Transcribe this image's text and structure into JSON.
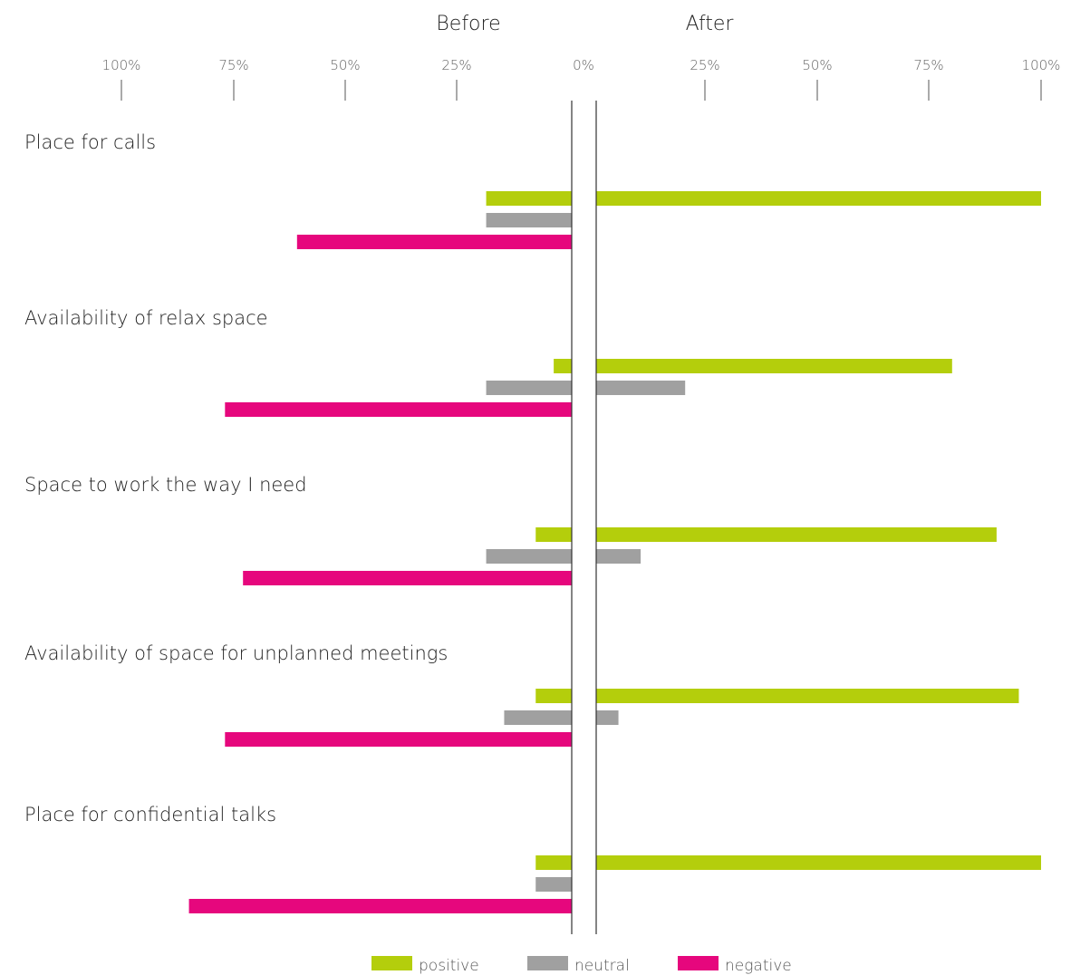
{
  "colors": {
    "positive": "#b4ce0c",
    "neutral": "#a0a0a0",
    "negative": "#e6077d"
  },
  "chart_data": {
    "type": "bar",
    "orientation": "horizontal-diverging",
    "panels": [
      "Before",
      "After"
    ],
    "tick_labels": [
      "100%",
      "75%",
      "50%",
      "25%",
      "0%",
      "25%",
      "50%",
      "75%",
      "100%"
    ],
    "xlim": [
      0,
      100
    ],
    "categories": [
      "Place for calls",
      "Availability of relax space",
      "Space to work the way I need",
      "Availability of space for unplanned meetings",
      "Place for confidential talks"
    ],
    "series": [
      {
        "name": "positive",
        "before": [
          19,
          4,
          8,
          8,
          8
        ],
        "after": [
          100,
          80,
          90,
          95,
          100
        ]
      },
      {
        "name": "neutral",
        "before": [
          19,
          19,
          19,
          15,
          8
        ],
        "after": [
          0,
          20,
          10,
          5,
          0
        ]
      },
      {
        "name": "negative",
        "before": [
          61,
          77,
          73,
          77,
          85
        ],
        "after": [
          0,
          0,
          0,
          0,
          0
        ]
      }
    ],
    "legend_position": "bottom-center",
    "grid": false
  }
}
